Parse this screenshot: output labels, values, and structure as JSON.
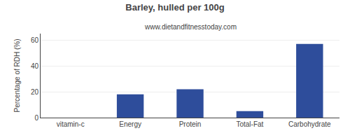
{
  "chart_data": {
    "type": "bar",
    "title": "Barley, hulled per 100g",
    "subtitle": "www.dietandfitnesstoday.com",
    "ylabel": "Percentage of RDH (%)",
    "categories": [
      "vitamin-c",
      "Energy",
      "Protein",
      "Total-Fat",
      "Carbohydrate"
    ],
    "values": [
      0,
      18,
      22,
      5,
      57
    ],
    "color": "#2e4d9b",
    "ylim": [
      0,
      65
    ],
    "yticks": [
      0,
      20,
      40,
      60
    ],
    "grid": true
  }
}
